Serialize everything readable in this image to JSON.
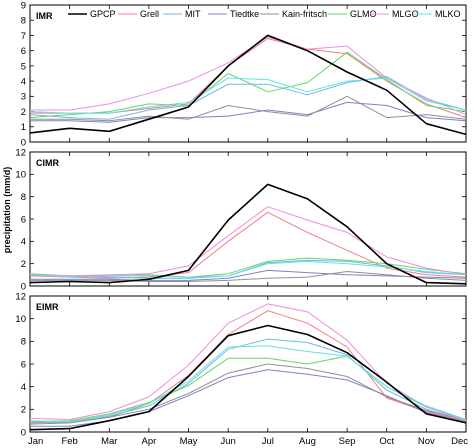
{
  "chart_data": {
    "type": "line",
    "ylabel": "precipitation (mm/d)",
    "categories": [
      "Jan",
      "Feb",
      "Mar",
      "Apr",
      "May",
      "Jun",
      "Jul",
      "Aug",
      "Sep",
      "Oct",
      "Nov",
      "Dec"
    ],
    "legend": {
      "placement": "top",
      "items": [
        {
          "name": "GPCP",
          "color": "#000000"
        },
        {
          "name": "Grell",
          "color": "#f08080"
        },
        {
          "name": "MIT",
          "color": "#6fb7e8"
        },
        {
          "name": "Tiedtke",
          "color": "#8080c8"
        },
        {
          "name": "Kain-fritsch",
          "color": "#909090"
        },
        {
          "name": "GLMO",
          "color": "#66d466"
        },
        {
          "name": "MLGO",
          "color": "#f08ce0"
        },
        {
          "name": "MLKO",
          "color": "#66e0e0"
        }
      ]
    },
    "panels": [
      {
        "title": "IMR",
        "ylim": [
          0,
          9
        ],
        "yticks": [
          0,
          1,
          2,
          3,
          4,
          5,
          6,
          7,
          8,
          9
        ],
        "series": [
          {
            "name": "GPCP",
            "values": [
              0.6,
              0.9,
              0.7,
              1.5,
              2.3,
              5.0,
              7.0,
              6.0,
              4.6,
              3.4,
              1.2,
              0.5
            ]
          },
          {
            "name": "Grell",
            "values": [
              1.9,
              1.9,
              1.9,
              2.2,
              2.5,
              5.0,
              6.8,
              6.1,
              5.8,
              4.0,
              2.5,
              1.6
            ]
          },
          {
            "name": "MIT",
            "values": [
              1.8,
              1.6,
              1.5,
              2.1,
              2.4,
              3.8,
              3.8,
              3.1,
              3.9,
              4.3,
              2.8,
              2.1
            ]
          },
          {
            "name": "Tiedtke",
            "values": [
              1.4,
              1.4,
              1.3,
              1.6,
              1.6,
              1.7,
              2.1,
              1.8,
              2.6,
              2.4,
              1.6,
              1.4
            ]
          },
          {
            "name": "Kain-fritsch",
            "values": [
              1.5,
              1.5,
              1.4,
              1.7,
              1.5,
              2.4,
              2.0,
              1.7,
              3.0,
              1.6,
              1.8,
              1.5
            ]
          },
          {
            "name": "GLMO",
            "values": [
              1.6,
              1.8,
              2.0,
              2.5,
              2.4,
              4.5,
              3.3,
              3.9,
              5.9,
              4.1,
              2.4,
              2.0
            ]
          },
          {
            "name": "MLGO",
            "values": [
              2.1,
              2.1,
              2.5,
              3.2,
              4.0,
              5.2,
              6.9,
              6.1,
              6.3,
              4.2,
              2.9,
              1.8
            ]
          },
          {
            "name": "MLKO",
            "values": [
              2.0,
              1.9,
              1.9,
              2.3,
              2.6,
              4.2,
              4.1,
              3.3,
              4.0,
              4.2,
              2.7,
              2.1
            ]
          }
        ]
      },
      {
        "title": "CIMR",
        "ylim": [
          0,
          12
        ],
        "yticks": [
          0,
          2,
          4,
          6,
          8,
          10,
          12
        ],
        "series": [
          {
            "name": "GPCP",
            "values": [
              0.3,
              0.4,
              0.3,
              0.6,
              1.4,
              5.9,
              9.1,
              7.8,
              5.3,
              2.0,
              0.3,
              0.2
            ]
          },
          {
            "name": "Grell",
            "values": [
              0.9,
              0.8,
              0.7,
              0.8,
              1.2,
              4.0,
              6.6,
              4.8,
              3.2,
              1.6,
              1.0,
              0.8
            ]
          },
          {
            "name": "MIT",
            "values": [
              1.0,
              0.9,
              0.8,
              0.7,
              0.7,
              0.9,
              2.1,
              2.3,
              2.2,
              1.8,
              1.2,
              1.0
            ]
          },
          {
            "name": "Tiedtke",
            "values": [
              0.6,
              0.6,
              0.6,
              0.5,
              0.5,
              0.7,
              1.4,
              1.2,
              1.0,
              0.9,
              0.8,
              0.7
            ]
          },
          {
            "name": "Kain-fritsch",
            "values": [
              0.5,
              0.5,
              0.5,
              0.4,
              0.4,
              0.5,
              0.7,
              0.8,
              1.3,
              1.0,
              0.7,
              0.5
            ]
          },
          {
            "name": "GLMO",
            "values": [
              1.1,
              0.9,
              0.9,
              1.0,
              0.8,
              1.1,
              2.2,
              2.5,
              2.3,
              2.0,
              1.5,
              1.1
            ]
          },
          {
            "name": "MLGO",
            "values": [
              1.0,
              0.9,
              1.0,
              1.1,
              1.8,
              4.5,
              7.1,
              5.9,
              4.8,
              2.6,
              1.6,
              1.0
            ]
          },
          {
            "name": "MLKO",
            "values": [
              1.0,
              0.8,
              0.9,
              0.9,
              0.8,
              0.9,
              2.0,
              2.2,
              2.0,
              1.7,
              1.3,
              1.0
            ]
          }
        ]
      },
      {
        "title": "EIMR",
        "ylim": [
          0,
          12
        ],
        "yticks": [
          0,
          2,
          4,
          6,
          8,
          10,
          12
        ],
        "series": [
          {
            "name": "GPCP",
            "values": [
              0.2,
              0.3,
              1.0,
              1.8,
              4.9,
              8.5,
              9.4,
              8.6,
              7.0,
              4.4,
              1.6,
              0.8
            ]
          },
          {
            "name": "Grell",
            "values": [
              0.8,
              0.9,
              1.3,
              2.5,
              5.0,
              8.6,
              10.7,
              9.6,
              7.5,
              3.0,
              1.8,
              0.9
            ]
          },
          {
            "name": "MIT",
            "values": [
              0.9,
              0.8,
              1.4,
              2.3,
              4.3,
              7.3,
              8.2,
              7.9,
              6.8,
              3.7,
              2.0,
              1.0
            ]
          },
          {
            "name": "Tiedtke",
            "values": [
              0.5,
              0.5,
              1.0,
              1.8,
              3.2,
              4.8,
              5.5,
              5.1,
              4.6,
              3.2,
              1.7,
              0.9
            ]
          },
          {
            "name": "Kain-fritsch",
            "values": [
              0.7,
              0.8,
              1.3,
              2.0,
              3.4,
              5.2,
              6.0,
              5.6,
              4.9,
              3.1,
              1.9,
              1.0
            ]
          },
          {
            "name": "GLMO",
            "values": [
              0.9,
              1.0,
              1.6,
              2.6,
              4.1,
              6.5,
              6.5,
              6.0,
              6.7,
              4.0,
              2.2,
              1.1
            ]
          },
          {
            "name": "MLGO",
            "values": [
              1.2,
              1.1,
              1.8,
              3.1,
              5.9,
              9.6,
              11.3,
              10.6,
              8.1,
              4.3,
              2.2,
              1.0
            ]
          },
          {
            "name": "MLKO",
            "values": [
              1.0,
              0.9,
              1.5,
              2.5,
              4.5,
              7.5,
              7.6,
              7.1,
              6.7,
              4.0,
              2.3,
              1.1
            ]
          }
        ]
      }
    ]
  }
}
